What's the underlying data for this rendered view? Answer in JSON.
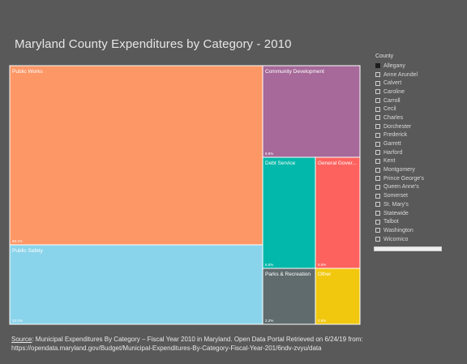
{
  "title": "Maryland County Expenditures by Category - 2010",
  "chart_data": {
    "type": "treemap",
    "title": "Maryland County Expenditures by Category - 2010",
    "items": [
      {
        "name": "Public Works",
        "pct_label": "50.1%",
        "color": "#fd9766"
      },
      {
        "name": "Public Safety",
        "pct_label": "22.0%",
        "color": "#8ad4eb"
      },
      {
        "name": "Community Development",
        "pct_label": "8.9%",
        "color": "#a66999"
      },
      {
        "name": "Debt Service",
        "pct_label": "6.5%",
        "color": "#01b8aa"
      },
      {
        "name": "General Gover...",
        "pct_label": "5.5%",
        "color": "#fd625e"
      },
      {
        "name": "Parks & Recreation",
        "pct_label": "2.2%",
        "color": "#5f6b6d"
      },
      {
        "name": "Other",
        "pct_label": "2.8%",
        "color": "#f2c80f"
      }
    ]
  },
  "legend": {
    "title": "County",
    "items": [
      {
        "label": "Allegany",
        "checked": true
      },
      {
        "label": "Anne Arundel",
        "checked": false
      },
      {
        "label": "Calvert",
        "checked": false
      },
      {
        "label": "Caroline",
        "checked": false
      },
      {
        "label": "Carroll",
        "checked": false
      },
      {
        "label": "Cecil",
        "checked": false
      },
      {
        "label": "Charles",
        "checked": false
      },
      {
        "label": "Dorchester",
        "checked": false
      },
      {
        "label": "Frederick",
        "checked": false
      },
      {
        "label": "Garrett",
        "checked": false
      },
      {
        "label": "Harford",
        "checked": false
      },
      {
        "label": "Kent",
        "checked": false
      },
      {
        "label": "Montgomery",
        "checked": false
      },
      {
        "label": "Prince George's",
        "checked": false
      },
      {
        "label": "Queen Anne's",
        "checked": false
      },
      {
        "label": "Somerset",
        "checked": false
      },
      {
        "label": "St. Mary's",
        "checked": false
      },
      {
        "label": "Statewide",
        "checked": false
      },
      {
        "label": "Talbot",
        "checked": false
      },
      {
        "label": "Washington",
        "checked": false
      },
      {
        "label": "Wicomico",
        "checked": false
      }
    ]
  },
  "source": {
    "label": "Source",
    "line1": ": Municipal Expenditures By Category – Fiscal Year 2010 in Maryland. Open Data Portal Retrieved on 6/24/19 from:",
    "line2": "https://opendata.maryland.gov/Budget/Municipal-Expenditures-By-Category-Fiscal-Year-201/6ndv-zvyu/data"
  }
}
